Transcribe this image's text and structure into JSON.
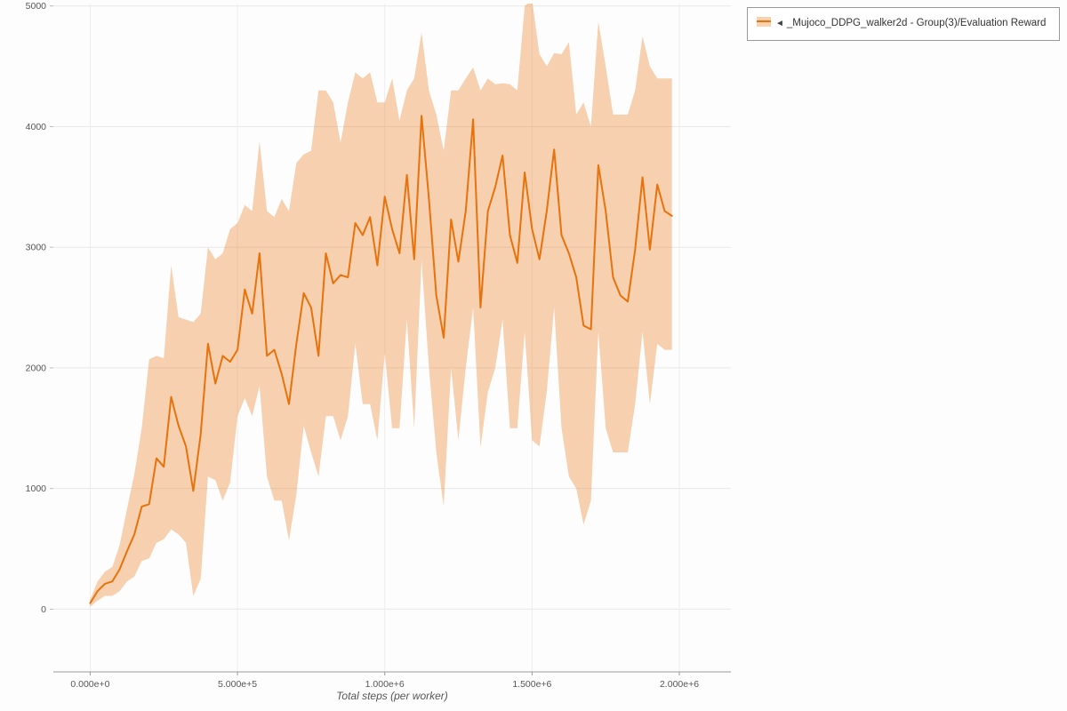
{
  "legend": {
    "collapse_icon": "◄",
    "label": "_Mujoco_DDPG_walker2d - Group(3)/Evaluation Reward"
  },
  "chart_data": {
    "type": "line",
    "title": "",
    "xlabel": "Total steps (per worker)",
    "ylabel": "",
    "grid": true,
    "legend_position": "top-right",
    "xlim": [
      -125000,
      2175000
    ],
    "ylim": [
      -520,
      5020
    ],
    "x_ticks": [
      {
        "value": 0,
        "label": "0.000e+0"
      },
      {
        "value": 500000,
        "label": "5.000e+5"
      },
      {
        "value": 1000000,
        "label": "1.000e+6"
      },
      {
        "value": 1500000,
        "label": "1.500e+6"
      },
      {
        "value": 2000000,
        "label": "2.000e+6"
      }
    ],
    "y_ticks": [
      {
        "value": 0,
        "label": "0"
      },
      {
        "value": 1000,
        "label": "1000"
      },
      {
        "value": 2000,
        "label": "2000"
      },
      {
        "value": 3000,
        "label": "3000"
      },
      {
        "value": 4000,
        "label": "4000"
      },
      {
        "value": 5000,
        "label": "5000"
      }
    ],
    "series": [
      {
        "name": "_Mujoco_DDPG_walker2d - Group(3)/Evaluation Reward",
        "color": "#e8720c",
        "band_color": "#e8720c",
        "band_opacity": 0.32,
        "x": [
          0,
          25000,
          50000,
          75000,
          100000,
          125000,
          150000,
          175000,
          200000,
          225000,
          250000,
          275000,
          300000,
          325000,
          350000,
          375000,
          400000,
          425000,
          450000,
          475000,
          500000,
          525000,
          550000,
          575000,
          600000,
          625000,
          650000,
          675000,
          700000,
          725000,
          750000,
          775000,
          800000,
          825000,
          850000,
          875000,
          900000,
          925000,
          950000,
          975000,
          1000000,
          1025000,
          1050000,
          1075000,
          1100000,
          1125000,
          1150000,
          1175000,
          1200000,
          1225000,
          1250000,
          1275000,
          1300000,
          1325000,
          1350000,
          1375000,
          1400000,
          1425000,
          1450000,
          1475000,
          1500000,
          1525000,
          1550000,
          1575000,
          1600000,
          1625000,
          1650000,
          1675000,
          1700000,
          1725000,
          1750000,
          1775000,
          1800000,
          1825000,
          1850000,
          1875000,
          1900000,
          1925000,
          1950000,
          1975000
        ],
        "mean": [
          50,
          150,
          210,
          230,
          330,
          480,
          620,
          850,
          870,
          1250,
          1180,
          1760,
          1520,
          1350,
          980,
          1450,
          2200,
          1870,
          2100,
          2050,
          2150,
          2650,
          2450,
          2950,
          2100,
          2150,
          1950,
          1700,
          2200,
          2620,
          2500,
          2100,
          2950,
          2700,
          2770,
          2750,
          3200,
          3100,
          3250,
          2850,
          3420,
          3150,
          2950,
          3600,
          2900,
          4090,
          3400,
          2600,
          2250,
          3230,
          2880,
          3300,
          4060,
          2500,
          3300,
          3500,
          3760,
          3100,
          2870,
          3620,
          3150,
          2900,
          3300,
          3810,
          3100,
          2950,
          2750,
          2350,
          2320,
          3680,
          3300,
          2750,
          2600,
          2550,
          2980,
          3580,
          2980,
          3520,
          3300,
          3260
        ],
        "lower": [
          20,
          70,
          110,
          110,
          150,
          230,
          270,
          400,
          420,
          550,
          580,
          660,
          620,
          550,
          110,
          250,
          1100,
          1070,
          900,
          1050,
          1600,
          1750,
          1600,
          1850,
          1100,
          900,
          900,
          570,
          950,
          1520,
          1300,
          1100,
          1600,
          1600,
          1400,
          1600,
          2200,
          1700,
          1700,
          1400,
          2120,
          1500,
          1500,
          2400,
          1500,
          2890,
          2000,
          1300,
          850,
          2000,
          1400,
          2000,
          2500,
          1340,
          1800,
          2000,
          2400,
          1500,
          1500,
          2300,
          1400,
          1350,
          1800,
          2500,
          1500,
          1100,
          1000,
          700,
          900,
          2300,
          1500,
          1300,
          1300,
          1300,
          1700,
          2300,
          1700,
          2200,
          2150,
          2150
        ],
        "upper": [
          80,
          230,
          310,
          350,
          530,
          830,
          1120,
          1500,
          2070,
          2100,
          2080,
          2850,
          2420,
          2400,
          2380,
          2450,
          3000,
          2900,
          2950,
          3150,
          3200,
          3350,
          3300,
          3880,
          3300,
          3250,
          3400,
          3300,
          3700,
          3770,
          3800,
          4300,
          4300,
          4200,
          3870,
          4200,
          4450,
          4400,
          4450,
          4200,
          4200,
          4400,
          4050,
          4300,
          4400,
          4780,
          4300,
          4100,
          3800,
          4300,
          4300,
          4400,
          4490,
          4300,
          4400,
          4350,
          4360,
          4350,
          4300,
          5000,
          5050,
          4600,
          4500,
          4610,
          4600,
          4700,
          4100,
          4200,
          4000,
          4870,
          4500,
          4100,
          4100,
          4100,
          4300,
          4750,
          4500,
          4400,
          4400,
          4400
        ]
      }
    ]
  }
}
